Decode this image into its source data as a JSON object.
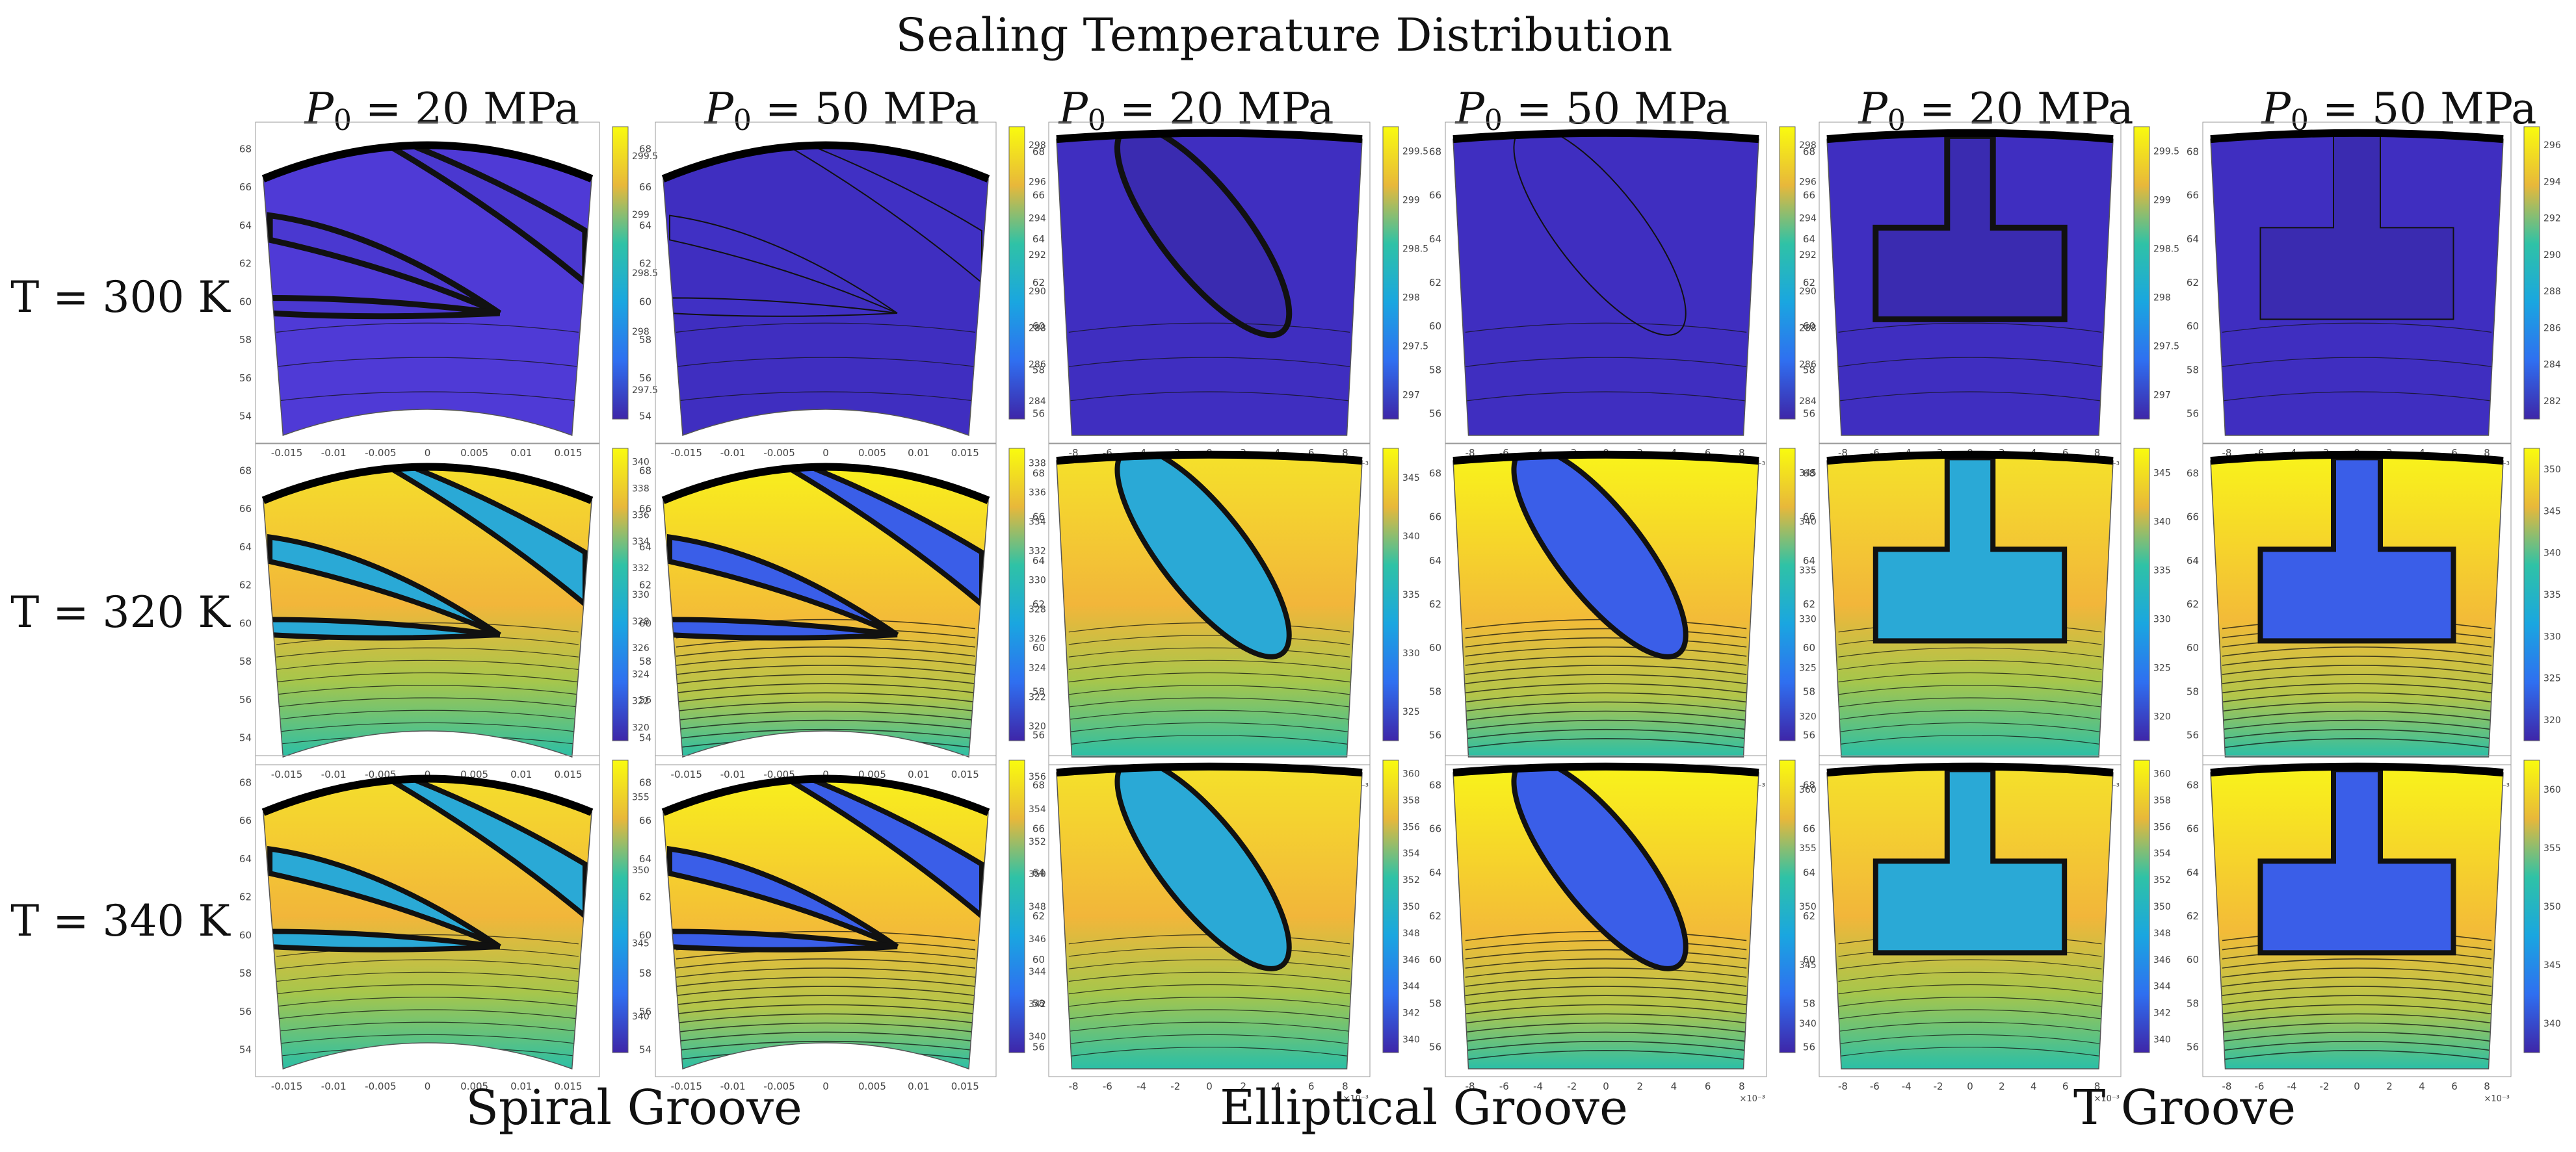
{
  "title": "Sealing Temperature Distribution",
  "column_headers": [
    {
      "var": "P",
      "sub": "0",
      "text": " = 20 MPa"
    },
    {
      "var": "P",
      "sub": "0",
      "text": " = 50 MPa"
    },
    {
      "var": "P",
      "sub": "0",
      "text": " = 20 MPa"
    },
    {
      "var": "P",
      "sub": "0",
      "text": " = 50 MPa"
    },
    {
      "var": "P",
      "sub": "0",
      "text": " = 20 MPa"
    },
    {
      "var": "P",
      "sub": "0",
      "text": " = 50 MPa"
    }
  ],
  "row_labels": [
    "T = 300 K",
    "T = 320 K",
    "T = 340 K"
  ],
  "group_labels": [
    "Spiral Groove",
    "Elliptical Groove",
    "T Groove"
  ],
  "colors": {
    "low": "#3e26a8",
    "mid_low": "#2f80f0",
    "mid": "#1fb8c0",
    "mid_high": "#f5b13a",
    "high": "#f9fb0e",
    "contour": "#111111"
  },
  "chart_data": [
    {
      "type": "heatmap",
      "groove": "Spiral Groove",
      "P0": "20 MPa",
      "T": "300 K",
      "state": "uniform",
      "x_ticks": [
        "-0.015",
        "-0.01",
        "-0.005",
        "0",
        "0.005",
        "0.01",
        "0.015"
      ],
      "x_multiplier": "",
      "y_ticks": [
        "54",
        "56",
        "58",
        "60",
        "62",
        "64",
        "66",
        "68"
      ],
      "cbar_ticks": [
        "297.5",
        "298",
        "298.5",
        "299",
        "299.5"
      ]
    },
    {
      "type": "heatmap",
      "groove": "Spiral Groove",
      "P0": "50 MPa",
      "T": "300 K",
      "state": "uniform",
      "x_ticks": [
        "-0.015",
        "-0.01",
        "-0.005",
        "0",
        "0.005",
        "0.01",
        "0.015"
      ],
      "x_multiplier": "",
      "y_ticks": [
        "54",
        "56",
        "58",
        "60",
        "62",
        "64",
        "66",
        "68"
      ],
      "cbar_ticks": [
        "284",
        "286",
        "288",
        "290",
        "292",
        "294",
        "296",
        "298"
      ]
    },
    {
      "type": "heatmap",
      "groove": "Elliptical Groove",
      "P0": "20 MPa",
      "T": "300 K",
      "state": "uniform",
      "x_ticks": [
        "-8",
        "-6",
        "-4",
        "-2",
        "0",
        "2",
        "4",
        "6",
        "8"
      ],
      "x_multiplier": "×10⁻³",
      "y_ticks": [
        "56",
        "58",
        "60",
        "62",
        "64",
        "66",
        "68"
      ],
      "cbar_ticks": [
        "297",
        "297.5",
        "298",
        "298.5",
        "299",
        "299.5"
      ]
    },
    {
      "type": "heatmap",
      "groove": "Elliptical Groove",
      "P0": "50 MPa",
      "T": "300 K",
      "state": "uniform",
      "x_ticks": [
        "-8",
        "-6",
        "-4",
        "-2",
        "0",
        "2",
        "4",
        "6",
        "8"
      ],
      "x_multiplier": "×10⁻³",
      "y_ticks": [
        "56",
        "58",
        "60",
        "62",
        "64",
        "66",
        "68"
      ],
      "cbar_ticks": [
        "284",
        "286",
        "288",
        "290",
        "292",
        "294",
        "296",
        "298"
      ]
    },
    {
      "type": "heatmap",
      "groove": "T Groove",
      "P0": "20 MPa",
      "T": "300 K",
      "state": "uniform",
      "x_ticks": [
        "-8",
        "-6",
        "-4",
        "-2",
        "0",
        "2",
        "4",
        "6",
        "8"
      ],
      "x_multiplier": "×10⁻³",
      "y_ticks": [
        "56",
        "58",
        "60",
        "62",
        "64",
        "66",
        "68"
      ],
      "cbar_ticks": [
        "297",
        "297.5",
        "298",
        "298.5",
        "299",
        "299.5"
      ]
    },
    {
      "type": "heatmap",
      "groove": "T Groove",
      "P0": "50 MPa",
      "T": "300 K",
      "state": "uniform",
      "x_ticks": [
        "-8",
        "-6",
        "-4",
        "-2",
        "0",
        "2",
        "4",
        "6",
        "8"
      ],
      "x_multiplier": "×10⁻³",
      "y_ticks": [
        "56",
        "58",
        "60",
        "62",
        "64",
        "66",
        "68"
      ],
      "cbar_ticks": [
        "282",
        "284",
        "286",
        "288",
        "290",
        "292",
        "294",
        "296"
      ]
    },
    {
      "type": "heatmap",
      "groove": "Spiral Groove",
      "P0": "20 MPa",
      "T": "320 K",
      "state": "warm",
      "x_ticks": [
        "-0.015",
        "-0.01",
        "-0.005",
        "0",
        "0.005",
        "0.01",
        "0.015"
      ],
      "x_multiplier": "",
      "y_ticks": [
        "54",
        "56",
        "58",
        "60",
        "62",
        "64",
        "66",
        "68"
      ],
      "cbar_ticks": [
        "320",
        "322",
        "324",
        "326",
        "328",
        "330",
        "332",
        "334",
        "336",
        "338",
        "340"
      ]
    },
    {
      "type": "heatmap",
      "groove": "Spiral Groove",
      "P0": "50 MPa",
      "T": "320 K",
      "state": "hot",
      "x_ticks": [
        "-0.015",
        "-0.01",
        "-0.005",
        "0",
        "0.005",
        "0.01",
        "0.015"
      ],
      "x_multiplier": "",
      "y_ticks": [
        "54",
        "56",
        "58",
        "60",
        "62",
        "64",
        "66",
        "68"
      ],
      "cbar_ticks": [
        "320",
        "322",
        "324",
        "326",
        "328",
        "330",
        "332",
        "334",
        "336",
        "338"
      ]
    },
    {
      "type": "heatmap",
      "groove": "Elliptical Groove",
      "P0": "20 MPa",
      "T": "320 K",
      "state": "warm",
      "x_ticks": [
        "-8",
        "-6",
        "-4",
        "-2",
        "0",
        "2",
        "4",
        "6",
        "8"
      ],
      "x_multiplier": "×10⁻³",
      "y_ticks": [
        "56",
        "58",
        "60",
        "62",
        "64",
        "66",
        "68"
      ],
      "cbar_ticks": [
        "325",
        "330",
        "335",
        "340",
        "345"
      ]
    },
    {
      "type": "heatmap",
      "groove": "Elliptical Groove",
      "P0": "50 MPa",
      "T": "320 K",
      "state": "hot",
      "x_ticks": [
        "-8",
        "-6",
        "-4",
        "-2",
        "0",
        "2",
        "4",
        "6",
        "8"
      ],
      "x_multiplier": "×10⁻³",
      "y_ticks": [
        "56",
        "58",
        "60",
        "62",
        "64",
        "66",
        "68"
      ],
      "cbar_ticks": [
        "320",
        "325",
        "330",
        "335",
        "340",
        "345"
      ]
    },
    {
      "type": "heatmap",
      "groove": "T Groove",
      "P0": "20 MPa",
      "T": "320 K",
      "state": "warm",
      "x_ticks": [
        "-8",
        "-6",
        "-4",
        "-2",
        "0",
        "2",
        "4",
        "6",
        "8"
      ],
      "x_multiplier": "×10⁻³",
      "y_ticks": [
        "56",
        "58",
        "60",
        "62",
        "64",
        "66",
        "68"
      ],
      "cbar_ticks": [
        "320",
        "325",
        "330",
        "335",
        "340",
        "345"
      ]
    },
    {
      "type": "heatmap",
      "groove": "T Groove",
      "P0": "50 MPa",
      "T": "320 K",
      "state": "hot",
      "x_ticks": [
        "-8",
        "-6",
        "-4",
        "-2",
        "0",
        "2",
        "4",
        "6",
        "8"
      ],
      "x_multiplier": "×10⁻³",
      "y_ticks": [
        "56",
        "58",
        "60",
        "62",
        "64",
        "66",
        "68"
      ],
      "cbar_ticks": [
        "320",
        "325",
        "330",
        "335",
        "340",
        "345",
        "350"
      ]
    },
    {
      "type": "heatmap",
      "groove": "Spiral Groove",
      "P0": "20 MPa",
      "T": "340 K",
      "state": "warm",
      "x_ticks": [
        "-0.015",
        "-0.01",
        "-0.005",
        "0",
        "0.005",
        "0.01",
        "0.015"
      ],
      "x_multiplier": "",
      "y_ticks": [
        "54",
        "56",
        "58",
        "60",
        "62",
        "64",
        "66",
        "68"
      ],
      "cbar_ticks": [
        "340",
        "345",
        "350",
        "355"
      ]
    },
    {
      "type": "heatmap",
      "groove": "Spiral Groove",
      "P0": "50 MPa",
      "T": "340 K",
      "state": "hot",
      "x_ticks": [
        "-0.015",
        "-0.01",
        "-0.005",
        "0",
        "0.005",
        "0.01",
        "0.015"
      ],
      "x_multiplier": "",
      "y_ticks": [
        "54",
        "56",
        "58",
        "60",
        "62",
        "64",
        "66",
        "68"
      ],
      "cbar_ticks": [
        "340",
        "342",
        "344",
        "346",
        "348",
        "350",
        "352",
        "354",
        "356"
      ]
    },
    {
      "type": "heatmap",
      "groove": "Elliptical Groove",
      "P0": "20 MPa",
      "T": "340 K",
      "state": "warm",
      "x_ticks": [
        "-8",
        "-6",
        "-4",
        "-2",
        "0",
        "2",
        "4",
        "6",
        "8"
      ],
      "x_multiplier": "×10⁻³",
      "y_ticks": [
        "56",
        "58",
        "60",
        "62",
        "64",
        "66",
        "68"
      ],
      "cbar_ticks": [
        "340",
        "342",
        "344",
        "346",
        "348",
        "350",
        "352",
        "354",
        "356",
        "358",
        "360"
      ]
    },
    {
      "type": "heatmap",
      "groove": "Elliptical Groove",
      "P0": "50 MPa",
      "T": "340 K",
      "state": "hot",
      "x_ticks": [
        "-8",
        "-6",
        "-4",
        "-2",
        "0",
        "2",
        "4",
        "6",
        "8"
      ],
      "x_multiplier": "×10⁻³",
      "y_ticks": [
        "56",
        "58",
        "60",
        "62",
        "64",
        "66",
        "68"
      ],
      "cbar_ticks": [
        "340",
        "345",
        "350",
        "355",
        "360"
      ]
    },
    {
      "type": "heatmap",
      "groove": "T Groove",
      "P0": "20 MPa",
      "T": "340 K",
      "state": "warm",
      "x_ticks": [
        "-8",
        "-6",
        "-4",
        "-2",
        "0",
        "2",
        "4",
        "6",
        "8"
      ],
      "x_multiplier": "×10⁻³",
      "y_ticks": [
        "56",
        "58",
        "60",
        "62",
        "64",
        "66",
        "68"
      ],
      "cbar_ticks": [
        "340",
        "342",
        "344",
        "346",
        "348",
        "350",
        "352",
        "354",
        "356",
        "358",
        "360"
      ]
    },
    {
      "type": "heatmap",
      "groove": "T Groove",
      "P0": "50 MPa",
      "T": "340 K",
      "state": "hot",
      "x_ticks": [
        "-8",
        "-6",
        "-4",
        "-2",
        "0",
        "2",
        "4",
        "6",
        "8"
      ],
      "x_multiplier": "×10⁻³",
      "y_ticks": [
        "56",
        "58",
        "60",
        "62",
        "64",
        "66",
        "68"
      ],
      "cbar_ticks": [
        "340",
        "345",
        "350",
        "355",
        "360"
      ]
    }
  ]
}
